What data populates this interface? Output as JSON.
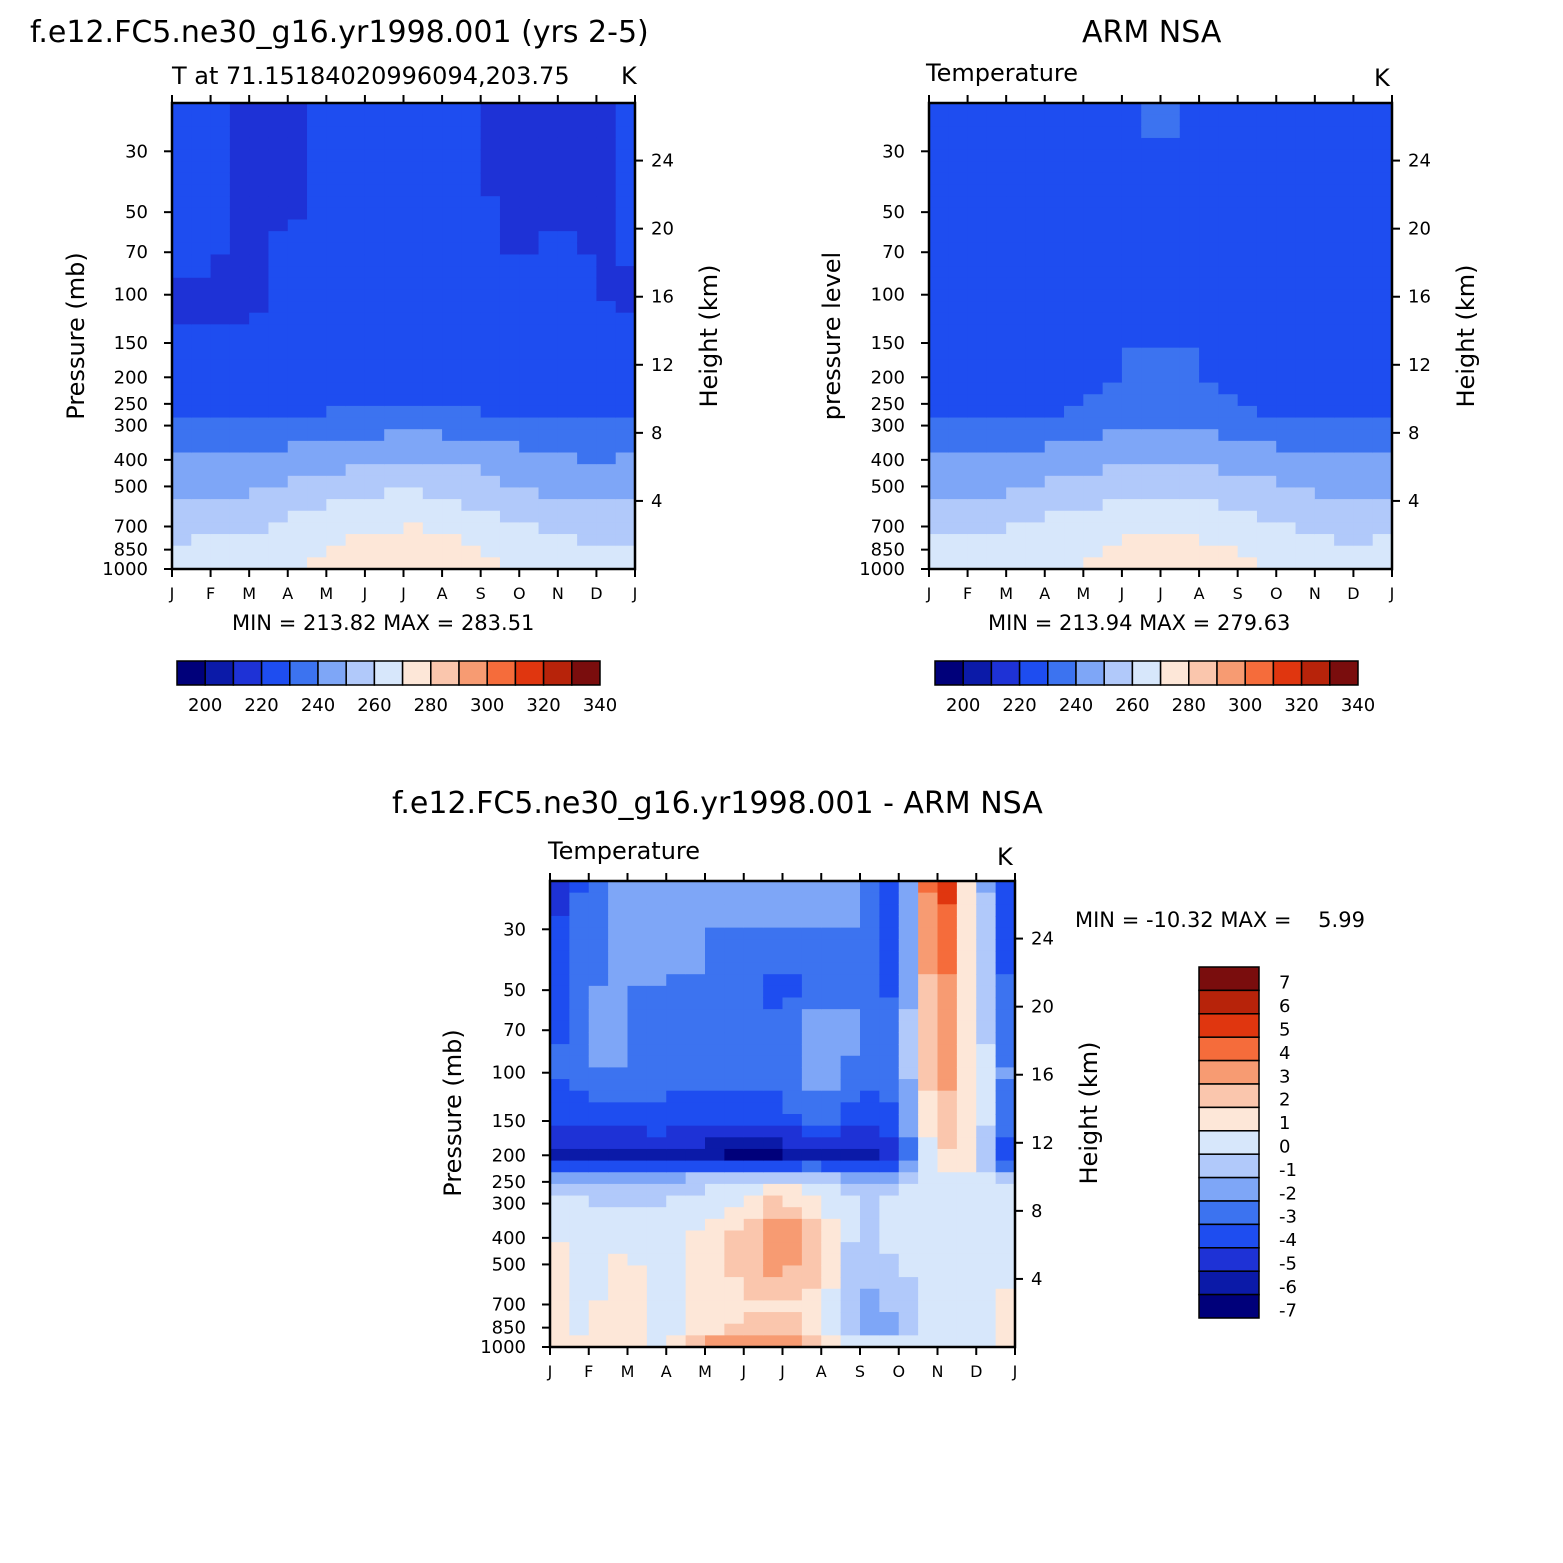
{
  "figure": {
    "left_panel_title": "f.e12.FC5.ne30_g16.yr1998.001 (yrs 2-5)",
    "right_panel_title": "ARM NSA",
    "bottom_panel_title": "f.e12.FC5.ne30_g16.yr1998.001 - ARM NSA"
  },
  "colors": {
    "abs_scale": [
      "#00007a",
      "#0b1aa8",
      "#1e32d6",
      "#1e4df0",
      "#3c73f0",
      "#7ea6f7",
      "#b1c9fa",
      "#d7e7fb",
      "#fde7d8",
      "#fac6ad",
      "#f79b72",
      "#f56c3b",
      "#e0360f",
      "#b7230a",
      "#7a0d0d"
    ],
    "diff_scale": [
      "#00007a",
      "#0b1aa8",
      "#1e32d6",
      "#1e4df0",
      "#3c73f0",
      "#7ea6f7",
      "#b1c9fa",
      "#d7e7fb",
      "#fde7d8",
      "#fac6ad",
      "#f79b72",
      "#f56c3b",
      "#e0360f",
      "#b7230a",
      "#7a0d0d"
    ]
  },
  "chart_data": [
    {
      "id": "model",
      "type": "heatmap",
      "title": "f.e12.FC5.ne30_g16.yr1998.001 (yrs 2-5)",
      "subtitle": "T at 71.1518402099609 4,203.75",
      "subtitle_text": "T at 71.1518402099609​4,203.75",
      "units": "K",
      "ylabel": "Pressure (mb)",
      "ylabel_right": "Height (km)",
      "x_ticks": [
        "J",
        "F",
        "M",
        "A",
        "M",
        "J",
        "J",
        "A",
        "S",
        "O",
        "N",
        "D",
        "J"
      ],
      "y_ticks": [
        30,
        50,
        70,
        100,
        150,
        200,
        250,
        300,
        400,
        500,
        700,
        850,
        1000
      ],
      "y_right_ticks": [
        4,
        8,
        12,
        16,
        20,
        24
      ],
      "stats": "MIN = 213.82  MAX = 283.51",
      "min": 213.82,
      "max": 283.51,
      "months": [
        1,
        2,
        3,
        4,
        5,
        6,
        7,
        8,
        9,
        10,
        11,
        12,
        13
      ],
      "levels_mb": [
        1000,
        850,
        700,
        500,
        400,
        300,
        250,
        200,
        150,
        100,
        70,
        50,
        30,
        20
      ],
      "values_K": [
        [
          265,
          261,
          258,
          247,
          241,
          232,
          226,
          222,
          221,
          219,
          221,
          221,
          222,
          223
        ],
        [
          266,
          262,
          259,
          248,
          242,
          232,
          226,
          222,
          221,
          219,
          221,
          221,
          222,
          223
        ],
        [
          266,
          262,
          259,
          248,
          242,
          232,
          226,
          222,
          221,
          218,
          218,
          218,
          218,
          219
        ],
        [
          269,
          265,
          262,
          251,
          244,
          233,
          227,
          222,
          222,
          222,
          223,
          218,
          218,
          219
        ],
        [
          274,
          270,
          266,
          254,
          246,
          234,
          228,
          223,
          223,
          223,
          223,
          223,
          223,
          223
        ],
        [
          278,
          273,
          268,
          257,
          248,
          236,
          229,
          223,
          224,
          225,
          225,
          225,
          225,
          225
        ],
        [
          283,
          275,
          270,
          259,
          250,
          238,
          230,
          222,
          225,
          226,
          226,
          226,
          226,
          226
        ],
        [
          279,
          274,
          269,
          257,
          249,
          236,
          229,
          223,
          224,
          226,
          226,
          226,
          226,
          226
        ],
        [
          274,
          270,
          265,
          254,
          247,
          234,
          228,
          223,
          224,
          224,
          223,
          221,
          219,
          219
        ],
        [
          269,
          266,
          262,
          250,
          244,
          233,
          227,
          222,
          221,
          220,
          219,
          219,
          219,
          219
        ],
        [
          264,
          262,
          258,
          247,
          241,
          232,
          226,
          222,
          221,
          222,
          223,
          219,
          218,
          218
        ],
        [
          263,
          261,
          257,
          246,
          240,
          232,
          226,
          222,
          221,
          220,
          219,
          219,
          219,
          219
        ],
        [
          265,
          261,
          258,
          247,
          241,
          232,
          226,
          222,
          221,
          219,
          221,
          221,
          222,
          223
        ]
      ]
    },
    {
      "id": "obs",
      "type": "heatmap",
      "title": "ARM NSA",
      "subtitle": "Temperature",
      "units": "K",
      "ylabel": "pressure level",
      "ylabel_right": "Height (km)",
      "x_ticks": [
        "J",
        "F",
        "M",
        "A",
        "M",
        "J",
        "J",
        "A",
        "S",
        "O",
        "N",
        "D",
        "J"
      ],
      "y_ticks": [
        30,
        50,
        70,
        100,
        150,
        200,
        250,
        300,
        400,
        500,
        700,
        850,
        1000
      ],
      "y_right_ticks": [
        4,
        8,
        12,
        16,
        20,
        24
      ],
      "stats": "MIN = 213.94  MAX = 279.63",
      "min": 213.94,
      "max": 279.63,
      "months": [
        1,
        2,
        3,
        4,
        5,
        6,
        7,
        8,
        9,
        10,
        11,
        12,
        13
      ],
      "levels_mb": [
        1000,
        850,
        700,
        500,
        400,
        300,
        250,
        200,
        150,
        100,
        70,
        50,
        30,
        20
      ],
      "values_K": [
        [
          265,
          262,
          258,
          247,
          241,
          231,
          225,
          221,
          223,
          224,
          224,
          224,
          224,
          224
        ],
        [
          265,
          262,
          259,
          247,
          241,
          231,
          224,
          220,
          222,
          224,
          224,
          224,
          224,
          224
        ],
        [
          266,
          263,
          259,
          248,
          242,
          232,
          224,
          220,
          224,
          226,
          226,
          226,
          226,
          226
        ],
        [
          268,
          265,
          262,
          251,
          244,
          233,
          226,
          225,
          226,
          227,
          227,
          227,
          227,
          227
        ],
        [
          272,
          268,
          265,
          254,
          246,
          236,
          230,
          229,
          229,
          228,
          228,
          228,
          228,
          228
        ],
        [
          276,
          272,
          267,
          257,
          248,
          238,
          232,
          230,
          230,
          229,
          229,
          229,
          229,
          229
        ],
        [
          279,
          274,
          269,
          258,
          249,
          239,
          233,
          231,
          230,
          230,
          230,
          230,
          230,
          231
        ],
        [
          277,
          273,
          268,
          256,
          248,
          238,
          232,
          230,
          230,
          229,
          229,
          229,
          229,
          229
        ],
        [
          273,
          269,
          265,
          253,
          246,
          236,
          230,
          228,
          228,
          227,
          227,
          227,
          227,
          227
        ],
        [
          268,
          265,
          262,
          251,
          244,
          233,
          226,
          222,
          225,
          226,
          226,
          226,
          226,
          226
        ],
        [
          265,
          262,
          259,
          248,
          242,
          232,
          224,
          221,
          221,
          222,
          223,
          224,
          225,
          225
        ],
        [
          264,
          261,
          258,
          247,
          241,
          231,
          224,
          221,
          221,
          221,
          221,
          221,
          221,
          222
        ],
        [
          265,
          262,
          258,
          247,
          241,
          231,
          225,
          221,
          223,
          224,
          224,
          224,
          224,
          224
        ]
      ]
    },
    {
      "id": "diff",
      "type": "heatmap",
      "title": "f.e12.FC5.ne30_g16.yr1998.001 - ARM NSA",
      "subtitle": "Temperature",
      "units": "K",
      "ylabel": "Pressure (mb)",
      "ylabel_right": "Height (km)",
      "x_ticks": [
        "J",
        "F",
        "M",
        "A",
        "M",
        "J",
        "J",
        "A",
        "S",
        "O",
        "N",
        "D",
        "J"
      ],
      "y_ticks": [
        30,
        50,
        70,
        100,
        150,
        200,
        250,
        300,
        400,
        500,
        700,
        850,
        1000
      ],
      "y_right_ticks": [
        4,
        8,
        12,
        16,
        20,
        24
      ],
      "stats": "MIN = -10.32 MAX =    5.99",
      "min": -10.32,
      "max": 5.99,
      "months": [
        1,
        2,
        3,
        4,
        5,
        6,
        7,
        8,
        9,
        10,
        11,
        12,
        13
      ],
      "levels_mb": [
        1000,
        850,
        700,
        500,
        400,
        300,
        250,
        200,
        150,
        100,
        70,
        50,
        30,
        20
      ],
      "values_K": [
        [
          0.2,
          0.3,
          0.4,
          0.3,
          0.1,
          -0.5,
          -1.5,
          -6.0,
          -5.0,
          -4.0,
          -4.5,
          -5.0,
          -5.5,
          -6.0
        ],
        [
          0.1,
          -0.3,
          -0.2,
          -0.4,
          -0.3,
          -1.0,
          -2.0,
          -6.5,
          -5.0,
          -3.0,
          -3.0,
          -3.0,
          -3.2,
          -3.5
        ],
        [
          0.0,
          1.5,
          0.6,
          0.3,
          -0.5,
          -1.0,
          -2.0,
          -6.5,
          -4.5,
          -3.0,
          -3.0,
          -3.0,
          -2.5,
          -2.0
        ],
        [
          -0.5,
          -0.5,
          -0.5,
          -0.8,
          -0.5,
          -1.0,
          -2.0,
          -6.0,
          -4.5,
          -3.5,
          -3.5,
          -3.0,
          -3.0,
          -3.0
        ],
        [
          2.5,
          0.5,
          0.2,
          0.3,
          0.5,
          -0.5,
          -1.0,
          -6.5,
          -5.0,
          -3.2,
          -3.0,
          -3.0,
          -3.0,
          -3.0
        ],
        [
          3.5,
          1.0,
          0.8,
          1.5,
          1.5,
          0.2,
          -0.5,
          -7.5,
          -5.0,
          -3.5,
          -3.5,
          -3.5,
          -3.0,
          -3.0
        ],
        [
          3.0,
          1.5,
          1.0,
          2.5,
          3.5,
          1.5,
          0.0,
          -7.0,
          -4.5,
          -3.5,
          -3.5,
          -4.5,
          -3.0,
          -3.0
        ],
        [
          1.5,
          0.5,
          0.5,
          1.0,
          1.0,
          0.0,
          -1.0,
          -6.0,
          -3.5,
          -2.0,
          -2.0,
          -3.5,
          -3.0,
          -3.0
        ],
        [
          0.5,
          -3.0,
          -2.5,
          -2.0,
          -1.5,
          -1.0,
          -2.0,
          -7.0,
          -5.0,
          -3.5,
          -3.0,
          -3.0,
          -3.0,
          -3.0
        ],
        [
          0.1,
          -2.0,
          -1.5,
          -1.0,
          -0.5,
          -0.8,
          -1.5,
          -5.5,
          -4.0,
          -3.5,
          -3.5,
          -4.5,
          -5.0,
          -5.5
        ],
        [
          0.0,
          -0.5,
          -0.5,
          -0.3,
          -0.5,
          -0.3,
          -0.2,
          1.0,
          2.0,
          3.0,
          3.5,
          4.0,
          5.0,
          6.0
        ],
        [
          -0.3,
          -0.8,
          -1.0,
          -1.2,
          -0.8,
          -0.5,
          -0.3,
          0.0,
          0.5,
          0.2,
          0.0,
          -0.5,
          -0.5,
          -0.8
        ],
        [
          0.2,
          0.3,
          0.4,
          0.3,
          0.1,
          -0.5,
          -1.5,
          -6.0,
          -5.0,
          -4.0,
          -4.5,
          -5.0,
          -5.5,
          -6.0
        ]
      ]
    }
  ],
  "legends": {
    "abs": {
      "labels": [
        "200",
        "220",
        "240",
        "260",
        "280",
        "300",
        "320",
        "340"
      ],
      "bins": 15
    },
    "diff": {
      "labels": [
        "7",
        "6",
        "5",
        "4",
        "3",
        "2",
        "1",
        "0",
        "-1",
        "-2",
        "-3",
        "-4",
        "-5",
        "-6",
        "-7"
      ],
      "bins": 15
    }
  }
}
